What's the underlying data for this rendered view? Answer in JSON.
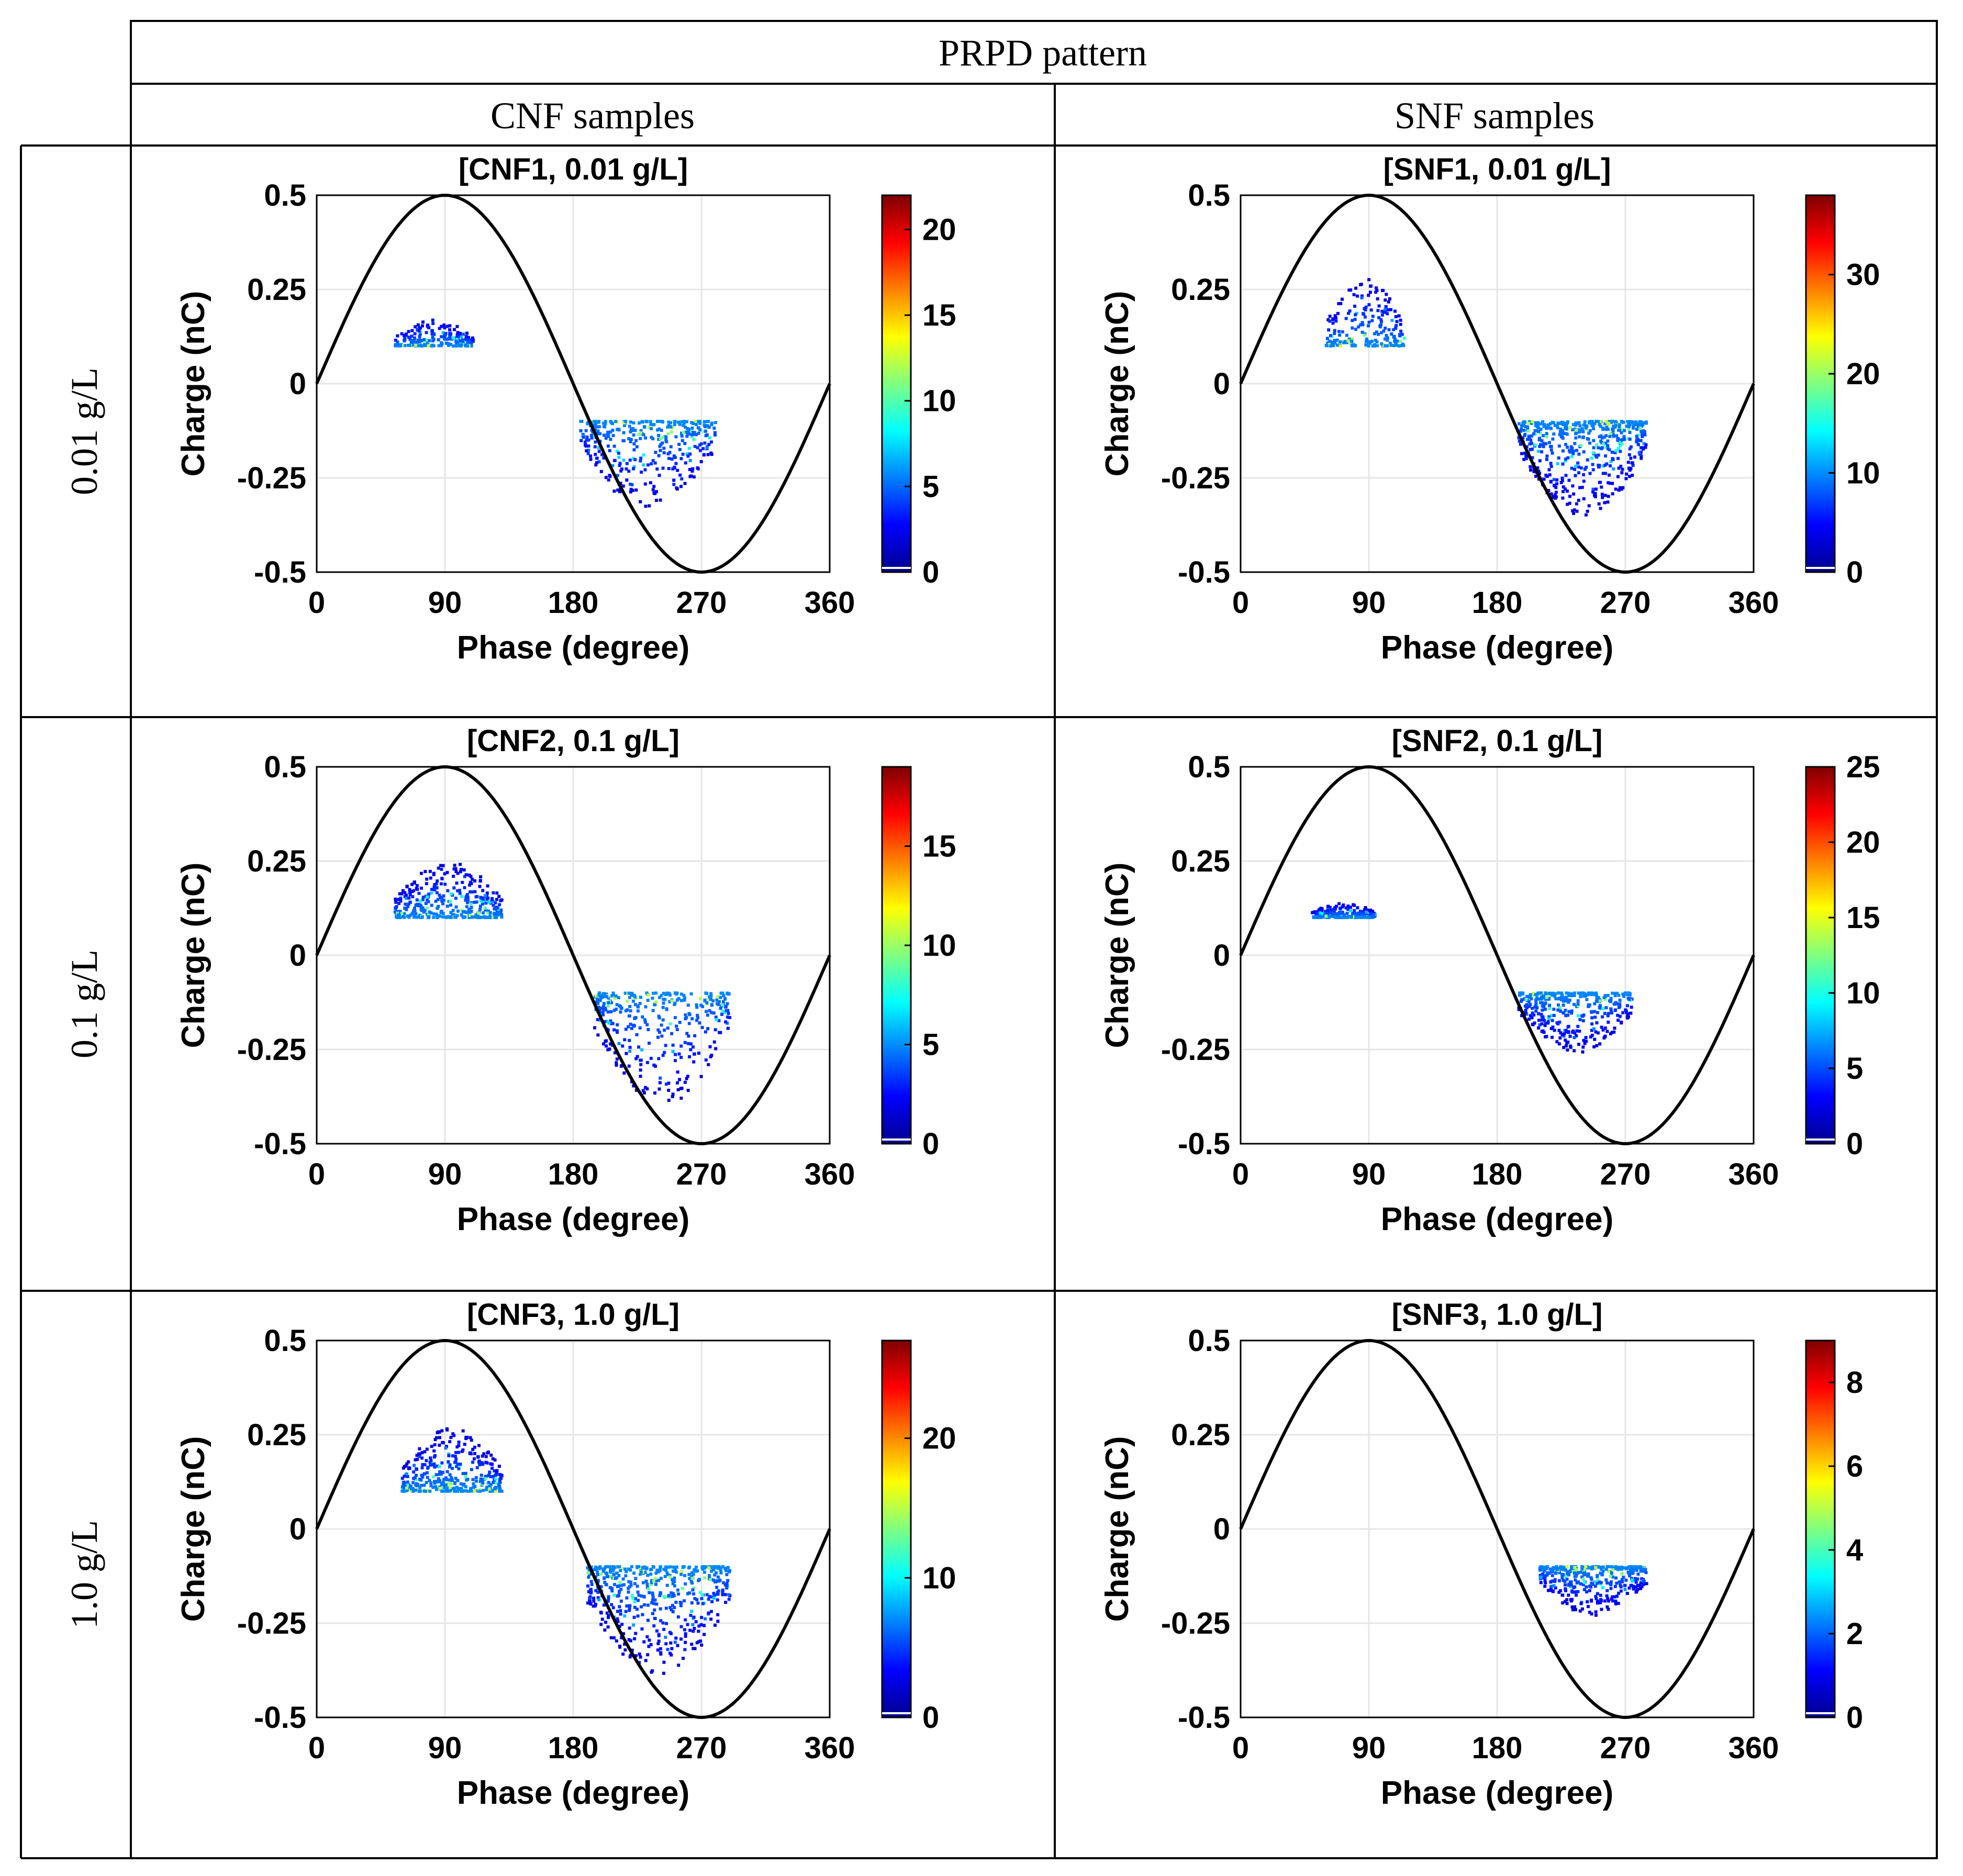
{
  "table": {
    "header_title": "PRPD pattern",
    "column_headers": [
      "CNF samples",
      "SNF samples"
    ],
    "row_headers": [
      "0.01 g/L",
      "0.1 g/L",
      "1.0 g/L"
    ]
  },
  "axis_labels": {
    "x": "Phase (degree)",
    "y": "Charge (nC)"
  },
  "chart_data": [
    {
      "type": "scatter",
      "title": "[CNF1, 0.01 g/L]",
      "xlabel": "Phase (degree)",
      "ylabel": "Charge (nC)",
      "xlim": [
        0,
        360
      ],
      "ylim": [
        -0.5,
        0.5
      ],
      "xticks": [
        0,
        90,
        180,
        270,
        360
      ],
      "yticks": [
        0.5,
        0.25,
        0,
        -0.25,
        -0.5
      ],
      "colorbar": {
        "min": 0,
        "max": 22,
        "ticks": [
          0,
          5,
          10,
          15,
          20
        ]
      },
      "reference_curve": {
        "type": "sine",
        "amplitude": 0.5
      },
      "clusters": [
        {
          "phase_range": [
            55,
            110
          ],
          "charge_range": [
            0.1,
            0.17
          ],
          "density": "low",
          "shape": "upper"
        },
        {
          "phase_range": [
            185,
            280
          ],
          "charge_range": [
            -0.33,
            -0.1
          ],
          "density": "medium",
          "shape": "lower"
        }
      ],
      "grid": true,
      "legend": "colorbar-right"
    },
    {
      "type": "scatter",
      "title": "[SNF1, 0.01 g/L]",
      "xlabel": "Phase (degree)",
      "ylabel": "Charge (nC)",
      "xlim": [
        0,
        360
      ],
      "ylim": [
        -0.5,
        0.5
      ],
      "xticks": [
        0,
        90,
        180,
        270,
        360
      ],
      "yticks": [
        0.5,
        0.25,
        0,
        -0.25,
        -0.5
      ],
      "colorbar": {
        "min": 0,
        "max": 38,
        "ticks": [
          0,
          10,
          20,
          30
        ]
      },
      "reference_curve": {
        "type": "sine",
        "amplitude": 0.5
      },
      "clusters": [
        {
          "phase_range": [
            60,
            115
          ],
          "charge_range": [
            0.1,
            0.28
          ],
          "density": "low",
          "shape": "upper"
        },
        {
          "phase_range": [
            195,
            285
          ],
          "charge_range": [
            -0.35,
            -0.1
          ],
          "density": "high",
          "shape": "lower"
        }
      ],
      "grid": true,
      "legend": "colorbar-right"
    },
    {
      "type": "scatter",
      "title": "[CNF2, 0.1 g/L]",
      "xlabel": "Phase (degree)",
      "ylabel": "Charge (nC)",
      "xlim": [
        0,
        360
      ],
      "ylim": [
        -0.5,
        0.5
      ],
      "xticks": [
        0,
        90,
        180,
        270,
        360
      ],
      "yticks": [
        0.5,
        0.25,
        0,
        -0.25,
        -0.5
      ],
      "colorbar": {
        "min": 0,
        "max": 19,
        "ticks": [
          0,
          5,
          10,
          15
        ]
      },
      "reference_curve": {
        "type": "sine",
        "amplitude": 0.5
      },
      "clusters": [
        {
          "phase_range": [
            55,
            130
          ],
          "charge_range": [
            0.1,
            0.25
          ],
          "density": "medium",
          "shape": "upper"
        },
        {
          "phase_range": [
            195,
            290
          ],
          "charge_range": [
            -0.4,
            -0.1
          ],
          "density": "medium",
          "shape": "lower"
        }
      ],
      "grid": true,
      "legend": "colorbar-right"
    },
    {
      "type": "scatter",
      "title": "[SNF2, 0.1 g/L]",
      "xlabel": "Phase (degree)",
      "ylabel": "Charge (nC)",
      "xlim": [
        0,
        360
      ],
      "ylim": [
        -0.5,
        0.5
      ],
      "xticks": [
        0,
        90,
        180,
        270,
        360
      ],
      "yticks": [
        0.5,
        0.25,
        0,
        -0.25,
        -0.5
      ],
      "colorbar": {
        "min": 0,
        "max": 25,
        "ticks": [
          0,
          5,
          10,
          15,
          20,
          25
        ]
      },
      "reference_curve": {
        "type": "sine",
        "amplitude": 0.5
      },
      "clusters": [
        {
          "phase_range": [
            50,
            95
          ],
          "charge_range": [
            0.1,
            0.14
          ],
          "density": "low",
          "shape": "upper"
        },
        {
          "phase_range": [
            195,
            275
          ],
          "charge_range": [
            -0.26,
            -0.1
          ],
          "density": "medium",
          "shape": "lower"
        }
      ],
      "grid": true,
      "legend": "colorbar-right"
    },
    {
      "type": "scatter",
      "title": "[CNF3, 1.0 g/L]",
      "xlabel": "Phase (degree)",
      "ylabel": "Charge (nC)",
      "xlim": [
        0,
        360
      ],
      "ylim": [
        -0.5,
        0.5
      ],
      "xticks": [
        0,
        90,
        180,
        270,
        360
      ],
      "yticks": [
        0.5,
        0.25,
        0,
        -0.25,
        -0.5
      ],
      "colorbar": {
        "min": 0,
        "max": 27,
        "ticks": [
          0,
          10,
          20
        ]
      },
      "reference_curve": {
        "type": "sine",
        "amplitude": 0.5
      },
      "clusters": [
        {
          "phase_range": [
            60,
            130
          ],
          "charge_range": [
            0.1,
            0.27
          ],
          "density": "medium",
          "shape": "upper"
        },
        {
          "phase_range": [
            190,
            290
          ],
          "charge_range": [
            -0.39,
            -0.1
          ],
          "density": "high",
          "shape": "lower"
        }
      ],
      "grid": true,
      "legend": "colorbar-right"
    },
    {
      "type": "scatter",
      "title": "[SNF3, 1.0 g/L]",
      "xlabel": "Phase (degree)",
      "ylabel": "Charge (nC)",
      "xlim": [
        0,
        360
      ],
      "ylim": [
        -0.5,
        0.5
      ],
      "xticks": [
        0,
        90,
        180,
        270,
        360
      ],
      "yticks": [
        0.5,
        0.25,
        0,
        -0.25,
        -0.5
      ],
      "colorbar": {
        "min": 0,
        "max": 9,
        "ticks": [
          0,
          2,
          4,
          6,
          8
        ]
      },
      "reference_curve": {
        "type": "sine",
        "amplitude": 0.5
      },
      "clusters": [
        {
          "phase_range": [
            210,
            285
          ],
          "charge_range": [
            -0.23,
            -0.1
          ],
          "density": "medium",
          "shape": "lower"
        }
      ],
      "grid": true,
      "legend": "colorbar-right"
    }
  ]
}
